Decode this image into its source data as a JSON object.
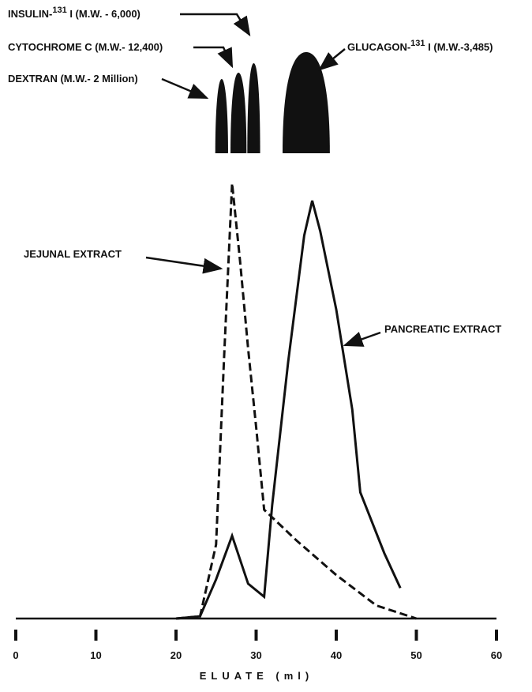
{
  "chart_data": {
    "type": "line",
    "x_label": "ELUATE (ml)",
    "xlim": [
      0,
      60
    ],
    "xticks": [
      0,
      10,
      20,
      30,
      40,
      50,
      60
    ],
    "ylim": [
      0,
      100
    ],
    "series": [
      {
        "name": "JEJUNAL EXTRACT",
        "color": "#111111",
        "dash": true,
        "x": [
          20,
          23,
          25,
          26,
          27,
          28,
          29,
          30,
          31,
          35,
          40,
          45,
          50
        ],
        "values": [
          0,
          0.5,
          17,
          60,
          100,
          82,
          62,
          44,
          25,
          18,
          10,
          3,
          0
        ]
      },
      {
        "name": "PANCREATIC EXTRACT",
        "color": "#111111",
        "dash": false,
        "x": [
          20,
          23,
          25,
          27,
          29,
          31,
          32,
          34,
          36,
          37,
          38,
          40,
          42,
          43,
          46,
          48
        ],
        "values": [
          0,
          0.5,
          9,
          19,
          8,
          5,
          26,
          59,
          88,
          96,
          89,
          71,
          48,
          29,
          15,
          7
        ]
      }
    ],
    "markers": [
      {
        "label": [
          "DEXTRAN (M.W.- 2 Million)"
        ],
        "x": [
          24.9,
          26.5
        ]
      },
      {
        "label": [
          "CYTOCHROME C (M.W.- 12,400)"
        ],
        "x": [
          26.8,
          28.8
        ]
      },
      {
        "label": [
          "INSULIN-",
          "131",
          " I (M.W. - 6,000)"
        ],
        "x": [
          28.9,
          30.5
        ]
      },
      {
        "label": [
          "GLUCAGON-",
          "131",
          " I (M.W.-3,485)"
        ],
        "x": [
          33.3,
          39.2
        ]
      }
    ]
  }
}
